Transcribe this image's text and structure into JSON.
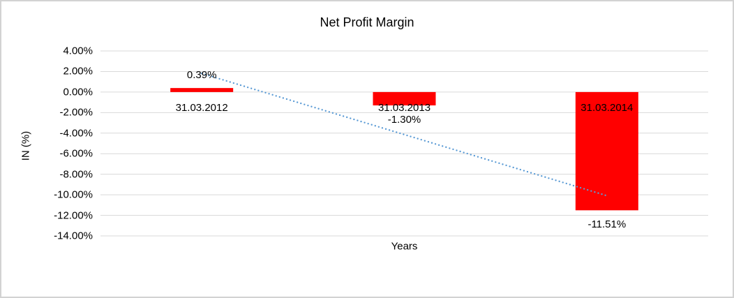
{
  "chart_data": {
    "type": "bar",
    "title": "Net Profit Margin",
    "xlabel": "Years",
    "ylabel": "IN (%)",
    "categories": [
      "31.03.2012",
      "31.03.2013",
      "31.03.2014"
    ],
    "series": [
      {
        "name": "Net Profit Margin",
        "values": [
          0.39,
          -1.3,
          -11.51
        ]
      }
    ],
    "data_labels": [
      "0.39%",
      "-1.30%",
      "-11.51%"
    ],
    "y_ticks": [
      {
        "value": 4,
        "label": "4.00%"
      },
      {
        "value": 2,
        "label": "2.00%"
      },
      {
        "value": 0,
        "label": "0.00%"
      },
      {
        "value": -2,
        "label": "-2.00%"
      },
      {
        "value": -4,
        "label": "-4.00%"
      },
      {
        "value": -6,
        "label": "-6.00%"
      },
      {
        "value": -8,
        "label": "-8.00%"
      },
      {
        "value": -10,
        "label": "-10.00%"
      },
      {
        "value": -12,
        "label": "-12.00%"
      },
      {
        "value": -14,
        "label": "-14.00%"
      }
    ],
    "ylim": [
      -14,
      4
    ],
    "grid": true,
    "legend": "none",
    "colors": {
      "bar": "#ff0000",
      "trendline": "#5b9bd5",
      "gridline": "#d9d9d9",
      "text": "#000000"
    },
    "trendline": {
      "type": "linear",
      "style": "dotted"
    }
  }
}
